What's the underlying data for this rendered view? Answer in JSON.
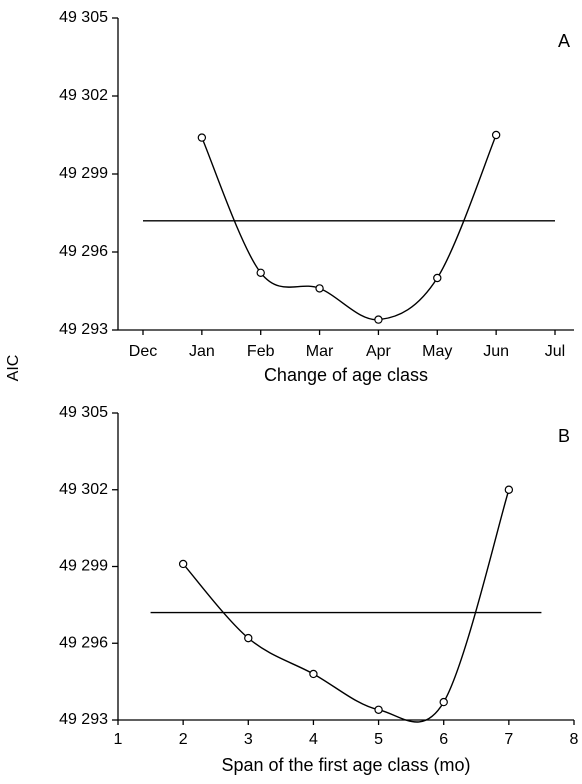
{
  "y_label": "AIC",
  "chart_data": [
    {
      "type": "line",
      "panel_label": "A",
      "xlabel": "Change of age class",
      "categories": [
        "Dec",
        "Jan",
        "Feb",
        "Mar",
        "Apr",
        "May",
        "Jun",
        "Jul"
      ],
      "values": [
        null,
        49300.4,
        49295.2,
        49294.6,
        49293.4,
        49295.0,
        49300.5,
        null
      ],
      "threshold": 49297.2,
      "ylim": [
        49293,
        49305
      ],
      "yticks": [
        {
          "value": 49293,
          "label": "49 293"
        },
        {
          "value": 49296,
          "label": "49 296"
        },
        {
          "value": 49299,
          "label": "49 299"
        },
        {
          "value": 49302,
          "label": "49 302"
        },
        {
          "value": 49305,
          "label": "49 305"
        }
      ]
    },
    {
      "type": "line",
      "panel_label": "B",
      "xlabel": "Span of the first age class (mo)",
      "x": [
        2,
        3,
        4,
        5,
        6,
        7
      ],
      "values": [
        49299.1,
        49296.2,
        49294.8,
        49293.4,
        49293.7,
        49302.0
      ],
      "threshold": 49297.2,
      "threshold_span": [
        1.5,
        7.5
      ],
      "xlim": [
        1,
        8
      ],
      "xticks": [
        1,
        2,
        3,
        4,
        5,
        6,
        7,
        8
      ],
      "ylim": [
        49293,
        49305
      ],
      "yticks": [
        {
          "value": 49293,
          "label": "49 293"
        },
        {
          "value": 49296,
          "label": "49 296"
        },
        {
          "value": 49299,
          "label": "49 299"
        },
        {
          "value": 49302,
          "label": "49 302"
        },
        {
          "value": 49305,
          "label": "49 305"
        }
      ]
    }
  ]
}
